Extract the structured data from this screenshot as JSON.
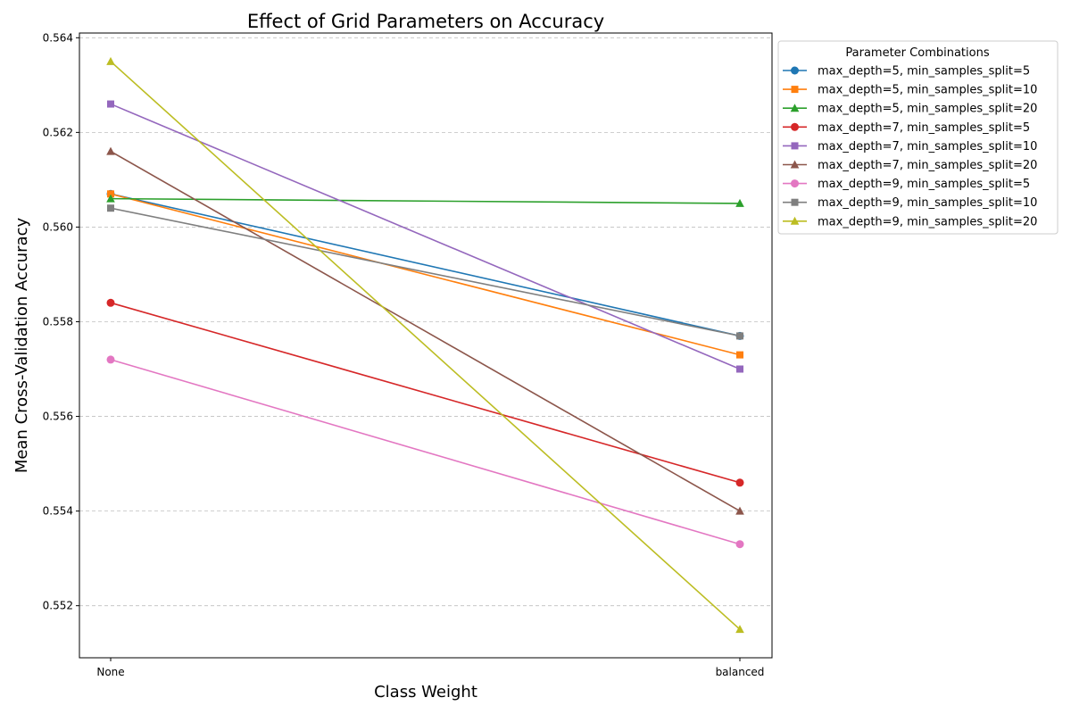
{
  "chart_data": {
    "type": "line",
    "title": "Effect of Grid Parameters on Accuracy",
    "xlabel": "Class Weight",
    "ylabel": "Mean Cross-Validation Accuracy",
    "categories": [
      "None",
      "balanced"
    ],
    "ylim": [
      0.5509,
      0.5641
    ],
    "yticks": [
      "0.552",
      "0.554",
      "0.556",
      "0.558",
      "0.560",
      "0.562",
      "0.564"
    ],
    "ytick_values": [
      0.552,
      0.554,
      0.556,
      0.558,
      0.56,
      0.562,
      0.564
    ],
    "grid": "y-dashed",
    "legend": {
      "title": "Parameter Combinations",
      "placement": "outside-top-right"
    },
    "series": [
      {
        "name": "max_depth=5, min_samples_split=5",
        "values": [
          0.5607,
          0.5577
        ],
        "color": "#1f77b4",
        "marker": "circle"
      },
      {
        "name": "max_depth=5, min_samples_split=10",
        "values": [
          0.5607,
          0.5573
        ],
        "color": "#ff7f0e",
        "marker": "square"
      },
      {
        "name": "max_depth=5, min_samples_split=20",
        "values": [
          0.5606,
          0.5605
        ],
        "color": "#2ca02c",
        "marker": "triangle"
      },
      {
        "name": "max_depth=7, min_samples_split=5",
        "values": [
          0.5584,
          0.5546
        ],
        "color": "#d62728",
        "marker": "circle"
      },
      {
        "name": "max_depth=7, min_samples_split=10",
        "values": [
          0.5626,
          0.557
        ],
        "color": "#9467bd",
        "marker": "square"
      },
      {
        "name": "max_depth=7, min_samples_split=20",
        "values": [
          0.5616,
          0.554
        ],
        "color": "#8c564b",
        "marker": "triangle"
      },
      {
        "name": "max_depth=9, min_samples_split=5",
        "values": [
          0.5572,
          0.5533
        ],
        "color": "#e377c2",
        "marker": "circle"
      },
      {
        "name": "max_depth=9, min_samples_split=10",
        "values": [
          0.5604,
          0.5577
        ],
        "color": "#7f7f7f",
        "marker": "square"
      },
      {
        "name": "max_depth=9, min_samples_split=20",
        "values": [
          0.5635,
          0.5515
        ],
        "color": "#bcbd22",
        "marker": "triangle"
      }
    ]
  }
}
